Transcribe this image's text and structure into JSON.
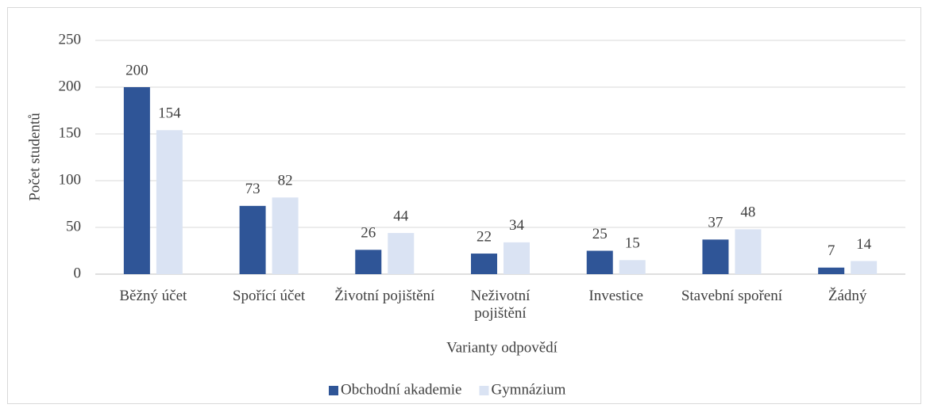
{
  "chart_data": {
    "type": "bar",
    "categories": [
      "Běžný účet",
      "Spořící účet",
      "Životní pojištění",
      "Neživotní pojištění",
      "Investice",
      "Stavební spoření",
      "Žádný"
    ],
    "series": [
      {
        "name": "Obchodní akademie",
        "color": "#2f5597",
        "values": [
          200,
          73,
          26,
          22,
          25,
          37,
          7
        ]
      },
      {
        "name": "Gymnázium",
        "color": "#dae3f3",
        "values": [
          154,
          82,
          44,
          34,
          15,
          48,
          14
        ]
      }
    ],
    "ylim": [
      0,
      250
    ],
    "yticks": [
      0,
      50,
      100,
      150,
      200,
      250
    ],
    "grid": true,
    "ylabel": "Počet studentů",
    "xlabel": "Varianty odpovědí",
    "legend": "bottom"
  }
}
